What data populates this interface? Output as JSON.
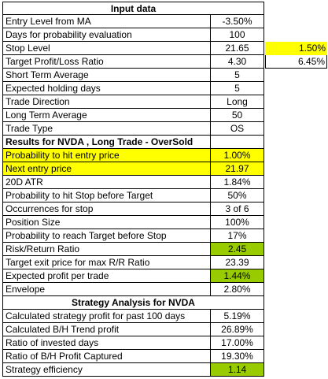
{
  "input_header": "Input data",
  "inputs": [
    {
      "label": "Entry Level from MA",
      "value": "-3.50%"
    },
    {
      "label": "Days for probability evaluation",
      "value": "100"
    },
    {
      "label": "Stop Level",
      "value": "21.65",
      "extra": "1.50%"
    },
    {
      "label": "Target Profit/Loss Ratio",
      "value": "4.30",
      "extra": "6.45%"
    },
    {
      "label": "Short Term Average",
      "value": "5"
    },
    {
      "label": "Expected holding days",
      "value": "5"
    },
    {
      "label": "Trade Direction",
      "value": "Long"
    },
    {
      "label": "Long Term Average",
      "value": "50"
    },
    {
      "label": "Trade Type",
      "value": "OS"
    }
  ],
  "results_header": "Results for NVDA , Long Trade - OverSold",
  "results": [
    {
      "label": "Probability to hit entry price",
      "value": "1.00%"
    },
    {
      "label": "Next entry price",
      "value": "21.97"
    },
    {
      "label": "20D ATR",
      "value": "1.84%"
    },
    {
      "label": "Probability to hit Stop before Target",
      "value": "50%"
    },
    {
      "label": "Occurrences for stop",
      "value": "3 of 6"
    },
    {
      "label": "Position Size",
      "value": "100%"
    },
    {
      "label": "Probability to reach Target before Stop",
      "value": "17%"
    },
    {
      "label": "Risk/Return Ratio",
      "value": "2.45"
    },
    {
      "label": "Target exit price for max R/R Ratio",
      "value": "23.39"
    },
    {
      "label": "Expected profit per trade",
      "value": "1.44%"
    },
    {
      "label": "Envelope",
      "value": "2.80%"
    }
  ],
  "strategy_header": "Strategy Analysis for NVDA",
  "strategy": [
    {
      "label": "Calculated strategy profit for past 100 days",
      "value": "5.19%"
    },
    {
      "label": "Calculated B/H Trend profit",
      "value": "26.89%"
    },
    {
      "label": "Ratio of invested days",
      "value": "17.00%"
    },
    {
      "label": "Ratio of B/H Profit Captured",
      "value": "19.30%"
    },
    {
      "label": "Strategy efficiency",
      "value": "1.14"
    }
  ],
  "colors": {
    "highlight_yellow": "#ffff00",
    "highlight_green": "#99cc00"
  }
}
